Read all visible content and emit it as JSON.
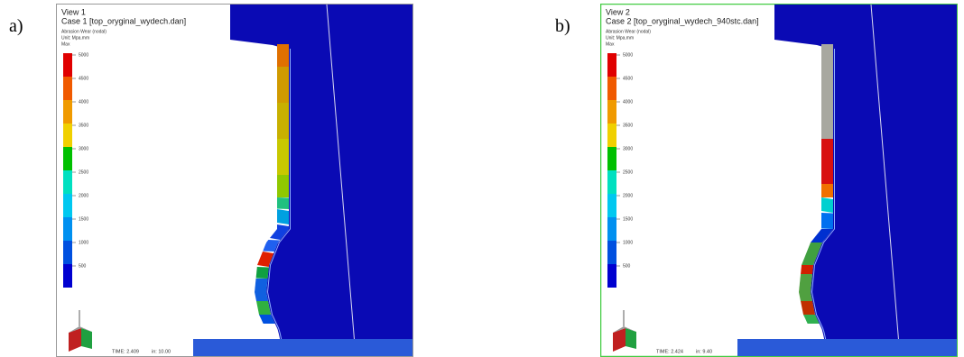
{
  "figure": {
    "panels": [
      {
        "label": "a)",
        "view": "View 1",
        "case": "Case 1  [top_oryginal_wydech.dan]",
        "result": "Abrasion Wear (nodal)",
        "unit": "Unit: Mpa.mm",
        "max": "Max",
        "legend": [
          {
            "label": "5000",
            "color": "#e00000"
          },
          {
            "label": "4500",
            "color": "#f05a00"
          },
          {
            "label": "4000",
            "color": "#f09a00"
          },
          {
            "label": "3500",
            "color": "#f0d000"
          },
          {
            "label": "3000",
            "color": "#00c000"
          },
          {
            "label": "2500",
            "color": "#00e0c0"
          },
          {
            "label": "2000",
            "color": "#00c8f0"
          },
          {
            "label": "1500",
            "color": "#0090f0"
          },
          {
            "label": "1000",
            "color": "#0050e0"
          },
          {
            "label": "500",
            "color": "#0000d0"
          }
        ],
        "time": "TIME:  2.409",
        "increment": "in: 10.00"
      },
      {
        "label": "b)",
        "view": "View 2",
        "case": "Case 2  [top_oryginal_wydech_940stc.dan]",
        "result": "Abrasion Wear (nodal)",
        "unit": "Unit: Mpa.mm",
        "max": "Max",
        "legend": [
          {
            "label": "5000",
            "color": "#e00000"
          },
          {
            "label": "4500",
            "color": "#f05a00"
          },
          {
            "label": "4000",
            "color": "#f09a00"
          },
          {
            "label": "3500",
            "color": "#f0d000"
          },
          {
            "label": "3000",
            "color": "#00c000"
          },
          {
            "label": "2500",
            "color": "#00e0c0"
          },
          {
            "label": "2000",
            "color": "#00c8f0"
          },
          {
            "label": "1500",
            "color": "#0090f0"
          },
          {
            "label": "1000",
            "color": "#0050e0"
          },
          {
            "label": "500",
            "color": "#0000d0"
          }
        ],
        "time": "TIME:  2.424",
        "increment": "in: 9.40"
      }
    ]
  }
}
